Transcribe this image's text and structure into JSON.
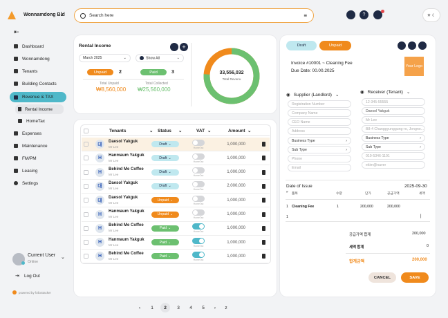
{
  "app": {
    "name": "Wonnamdong Bld"
  },
  "search": {
    "placeholder": "Search here"
  },
  "sidebar": {
    "items": [
      {
        "label": "Dashboard"
      },
      {
        "label": "Wonnamdong"
      },
      {
        "label": "Tenants"
      },
      {
        "label": "Building Contacts"
      },
      {
        "label": "Revenue & TAX"
      },
      {
        "label": "Rental Income"
      },
      {
        "label": "HomeTax"
      },
      {
        "label": "Expenses"
      },
      {
        "label": "Maintenance"
      },
      {
        "label": "FM/PM"
      },
      {
        "label": "Leasing"
      },
      {
        "label": "Settings"
      }
    ],
    "user": {
      "name": "Current User",
      "status": "Online"
    },
    "logout": "Log Out",
    "powered": "powered by folioStacker"
  },
  "rental": {
    "title": "Rental Income",
    "month": "March 2025",
    "filter": "Show All",
    "unpaid_label": "Unpaid",
    "unpaid_count": "2",
    "paid_label": "Paid",
    "paid_count": "3",
    "total_unpaid_label": "Total Unpaid",
    "total_unpaid": "₩8,560,000",
    "total_collected_label": "Total Collected",
    "total_collected": "₩25,560,000",
    "donut_value": "33,556,032",
    "donut_label": "Total Revenu",
    "donut_paid_fraction": 0.76
  },
  "table": {
    "headers": {
      "tenants": "Tenants",
      "status": "Status",
      "vat": "VAT",
      "amount": "Amount"
    },
    "vat_sub": "HomeTax",
    "rows": [
      {
        "icon": "대",
        "name": "Daesol Yakguk",
        "sub": "Mr Lee",
        "status": "Draft",
        "vat_on": false,
        "amount": "1,000,000",
        "highlight": true
      },
      {
        "icon": "H",
        "name": "Hanmaum Yakguk",
        "sub": "Mr Lee",
        "status": "Draft",
        "vat_on": false,
        "amount": "1,000,000"
      },
      {
        "icon": "H",
        "name": "Behind Me Coffee",
        "sub": "Mr Lee",
        "status": "Draft",
        "vat_on": false,
        "amount": "1,000,000"
      },
      {
        "icon": "대",
        "name": "Daesol Yakguk",
        "sub": "Mr Lee",
        "status": "Draft",
        "vat_on": false,
        "amount": "2,000,000"
      },
      {
        "icon": "대",
        "name": "Daesol Yakguk",
        "sub": "Mr Lee",
        "status": "Unpaid",
        "vat_on": false,
        "amount": "1,000,000"
      },
      {
        "icon": "H",
        "name": "Hanmaum Yakguk",
        "sub": "Mr Lee",
        "status": "Unpaid",
        "vat_on": false,
        "amount": "1,000,000"
      },
      {
        "icon": "H",
        "name": "Behind Me Coffee",
        "sub": "Mr Lee",
        "status": "Paid",
        "vat_on": true,
        "amount": "1,000,000"
      },
      {
        "icon": "H",
        "name": "Hanmaum Yakguk",
        "sub": "Mr Lee",
        "status": "Paid",
        "vat_on": true,
        "amount": "1,000,000"
      },
      {
        "icon": "H",
        "name": "Behind Me Coffee",
        "sub": "Mr Lee",
        "status": "Paid",
        "vat_on": true,
        "amount": "1,000,000"
      }
    ]
  },
  "pagination": {
    "pages": [
      "1",
      "2",
      "3",
      "4",
      "5"
    ],
    "current": "2",
    "prev": "‹",
    "next": "›",
    "last": "z"
  },
  "invoice": {
    "tab_draft": "Draft",
    "tab_unpaid": "Unpaid",
    "number": "Invoice #10001 ~ Cleaning Fee",
    "due": "Due Date: 00.00.2025",
    "logo": "Your Logo",
    "supplier": {
      "title": "Supplier (Landlord)",
      "fields": [
        "Registration Number",
        "Company Name",
        "CEO Name",
        "Address"
      ],
      "business_type": "Business Type",
      "sub_type": "Sub Type",
      "phone": "Phone",
      "email": "Email"
    },
    "receiver": {
      "title": "Receiver (Tenant)",
      "fields": [
        "12-345-55555",
        "Daesol Yakguk",
        "Mr Lee",
        "B8-4 Changgyunggung-ro, Jongno..."
      ],
      "business_type": "Business Type",
      "sub_type": "Sub Type",
      "phone": "010-5346-1101",
      "email": "ekim@naver"
    },
    "date_label": "Date of Issue",
    "date": "2025-09-30",
    "cols": [
      "#",
      "품목",
      "수량",
      "단가",
      "공급가액",
      "세액"
    ],
    "items": [
      {
        "no": "1",
        "name": "Cleaning Fee",
        "qty": "1",
        "price": "200,000",
        "supply": "200,000",
        "tax": ""
      }
    ],
    "blank_row": "1",
    "supply_total_label": "공급가액 합계",
    "supply_total": "200,000",
    "tax_total_label": "세액 합계",
    "tax_total": "0",
    "grand_label": "합계금액",
    "grand_total": "200,000",
    "cancel": "CANCEL",
    "save": "SAVE"
  },
  "colors": {
    "accent": "#f08a1c",
    "teal": "#4fb8c9",
    "green": "#6cc070",
    "navy": "#1f2a44"
  }
}
